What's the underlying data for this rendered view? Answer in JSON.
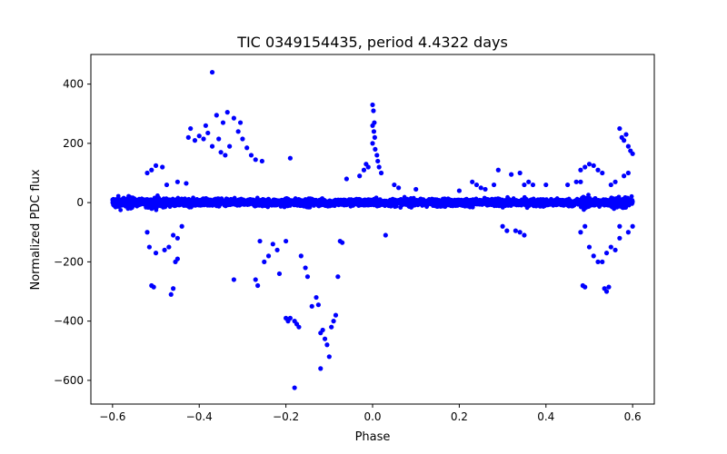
{
  "chart_data": {
    "type": "scatter",
    "title": "TIC 0349154435, period 4.4322 days",
    "xlabel": "Phase",
    "ylabel": "Normalized PDC flux",
    "xlim": [
      -0.65,
      0.65
    ],
    "ylim": [
      -680,
      500
    ],
    "xticks": [
      -0.6,
      -0.4,
      -0.2,
      0.0,
      0.2,
      0.4,
      0.6
    ],
    "xtick_labels": [
      "−0.6",
      "−0.4",
      "−0.2",
      "0.0",
      "0.2",
      "0.4",
      "0.6"
    ],
    "yticks": [
      -600,
      -400,
      -200,
      0,
      200,
      400
    ],
    "ytick_labels": [
      "−600",
      "−400",
      "−200",
      "0",
      "200",
      "400"
    ],
    "grid": false,
    "marker_color": "#0000ff",
    "series": [
      {
        "name": "PDC flux",
        "band": {
          "x_range": [
            -0.6,
            0.6
          ],
          "y_core_spread": 22
        },
        "points": [
          [
            -0.37,
            440
          ],
          [
            -0.335,
            305
          ],
          [
            -0.32,
            285
          ],
          [
            -0.305,
            270
          ],
          [
            -0.36,
            295
          ],
          [
            -0.345,
            270
          ],
          [
            -0.385,
            260
          ],
          [
            -0.38,
            235
          ],
          [
            -0.4,
            225
          ],
          [
            -0.42,
            250
          ],
          [
            -0.425,
            220
          ],
          [
            -0.41,
            210
          ],
          [
            -0.39,
            215
          ],
          [
            -0.355,
            215
          ],
          [
            -0.37,
            190
          ],
          [
            -0.35,
            170
          ],
          [
            -0.33,
            190
          ],
          [
            -0.31,
            240
          ],
          [
            -0.3,
            215
          ],
          [
            -0.29,
            185
          ],
          [
            -0.28,
            160
          ],
          [
            -0.27,
            145
          ],
          [
            -0.255,
            140
          ],
          [
            -0.34,
            160
          ],
          [
            -0.5,
            125
          ],
          [
            -0.485,
            120
          ],
          [
            -0.51,
            110
          ],
          [
            -0.52,
            100
          ],
          [
            -0.45,
            70
          ],
          [
            -0.43,
            65
          ],
          [
            -0.475,
            60
          ],
          [
            -0.44,
            -80
          ],
          [
            -0.45,
            -120
          ],
          [
            -0.46,
            -110
          ],
          [
            -0.47,
            -150
          ],
          [
            -0.48,
            -160
          ],
          [
            -0.5,
            -170
          ],
          [
            -0.52,
            -100
          ],
          [
            -0.515,
            -150
          ],
          [
            -0.51,
            -280
          ],
          [
            -0.505,
            -285
          ],
          [
            -0.46,
            -290
          ],
          [
            -0.465,
            -310
          ],
          [
            -0.455,
            -200
          ],
          [
            -0.45,
            -190
          ],
          [
            -0.26,
            -130
          ],
          [
            -0.25,
            -200
          ],
          [
            -0.24,
            -180
          ],
          [
            -0.27,
            -260
          ],
          [
            -0.265,
            -280
          ],
          [
            -0.32,
            -260
          ],
          [
            -0.23,
            -140
          ],
          [
            -0.22,
            -160
          ],
          [
            -0.215,
            -240
          ],
          [
            -0.2,
            -390
          ],
          [
            -0.195,
            -400
          ],
          [
            -0.19,
            -390
          ],
          [
            -0.18,
            -400
          ],
          [
            -0.175,
            -410
          ],
          [
            -0.17,
            -420
          ],
          [
            -0.165,
            -180
          ],
          [
            -0.155,
            -220
          ],
          [
            -0.15,
            -250
          ],
          [
            -0.14,
            -350
          ],
          [
            -0.13,
            -320
          ],
          [
            -0.125,
            -345
          ],
          [
            -0.12,
            -440
          ],
          [
            -0.115,
            -430
          ],
          [
            -0.11,
            -460
          ],
          [
            -0.105,
            -480
          ],
          [
            -0.1,
            -520
          ],
          [
            -0.095,
            -420
          ],
          [
            -0.09,
            -400
          ],
          [
            -0.085,
            -380
          ],
          [
            -0.08,
            -250
          ],
          [
            -0.075,
            -130
          ],
          [
            -0.07,
            -135
          ],
          [
            -0.12,
            -560
          ],
          [
            -0.18,
            -625
          ],
          [
            -0.19,
            150
          ],
          [
            -0.2,
            -130
          ],
          [
            -0.06,
            80
          ],
          [
            -0.03,
            90
          ],
          [
            -0.02,
            110
          ],
          [
            -0.015,
            130
          ],
          [
            -0.01,
            120
          ],
          [
            0.0,
            330
          ],
          [
            0.002,
            310
          ],
          [
            0.004,
            270
          ],
          [
            0.0,
            260
          ],
          [
            0.003,
            240
          ],
          [
            0.005,
            220
          ],
          [
            0.0,
            200
          ],
          [
            0.006,
            180
          ],
          [
            0.01,
            160
          ],
          [
            0.012,
            140
          ],
          [
            0.015,
            120
          ],
          [
            0.02,
            100
          ],
          [
            0.03,
            -110
          ],
          [
            0.05,
            60
          ],
          [
            0.06,
            50
          ],
          [
            0.1,
            45
          ],
          [
            0.2,
            40
          ],
          [
            0.23,
            70
          ],
          [
            0.24,
            60
          ],
          [
            0.25,
            50
          ],
          [
            0.26,
            45
          ],
          [
            0.28,
            60
          ],
          [
            0.29,
            110
          ],
          [
            0.32,
            95
          ],
          [
            0.34,
            100
          ],
          [
            0.35,
            60
          ],
          [
            0.36,
            70
          ],
          [
            0.37,
            60
          ],
          [
            0.3,
            -80
          ],
          [
            0.31,
            -95
          ],
          [
            0.33,
            -95
          ],
          [
            0.34,
            -100
          ],
          [
            0.35,
            -110
          ],
          [
            0.4,
            60
          ],
          [
            0.45,
            60
          ],
          [
            0.47,
            70
          ],
          [
            0.48,
            70
          ],
          [
            0.49,
            120
          ],
          [
            0.5,
            130
          ],
          [
            0.51,
            125
          ],
          [
            0.52,
            110
          ],
          [
            0.53,
            100
          ],
          [
            0.485,
            -280
          ],
          [
            0.49,
            -285
          ],
          [
            0.49,
            -80
          ],
          [
            0.48,
            -100
          ],
          [
            0.5,
            -150
          ],
          [
            0.51,
            -180
          ],
          [
            0.52,
            -200
          ],
          [
            0.53,
            -200
          ],
          [
            0.54,
            -170
          ],
          [
            0.55,
            -150
          ],
          [
            0.56,
            -160
          ],
          [
            0.57,
            -120
          ],
          [
            0.535,
            -290
          ],
          [
            0.54,
            -300
          ],
          [
            0.545,
            -285
          ],
          [
            0.48,
            110
          ],
          [
            0.57,
            250
          ],
          [
            0.575,
            220
          ],
          [
            0.58,
            210
          ],
          [
            0.585,
            230
          ],
          [
            0.59,
            190
          ],
          [
            0.595,
            175
          ],
          [
            0.6,
            165
          ],
          [
            0.59,
            100
          ],
          [
            0.58,
            90
          ],
          [
            0.55,
            60
          ],
          [
            0.56,
            70
          ],
          [
            0.57,
            -80
          ],
          [
            0.59,
            -100
          ],
          [
            0.6,
            -80
          ]
        ]
      }
    ]
  }
}
